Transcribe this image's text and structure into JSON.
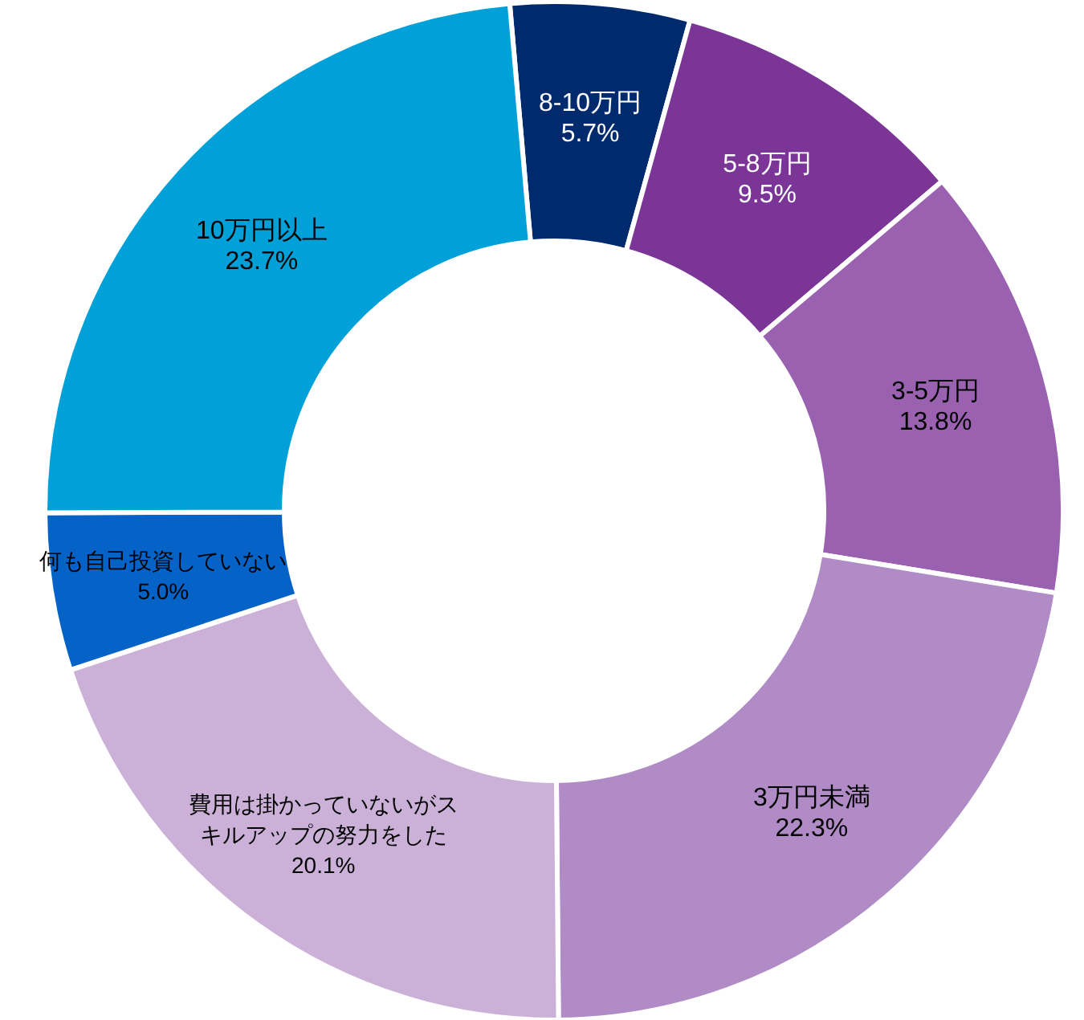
{
  "chart_data": {
    "type": "donut",
    "categories": [
      "8-10万円",
      "5-8万円",
      "3-5万円",
      "3万円未満",
      "費用は掛かっていないがスキルアップの努力をした",
      "何も自己投資していない",
      "10万円以上"
    ],
    "values": [
      5.7,
      9.5,
      13.8,
      22.3,
      20.1,
      5.0,
      23.7
    ],
    "value_labels": [
      "5.7%",
      "9.5%",
      "13.8%",
      "22.3%",
      "20.1%",
      "5.0%",
      "23.7%"
    ],
    "colors": [
      "#002a6e",
      "#7a3597",
      "#9a61b0",
      "#b18bc6",
      "#cbb0d8",
      "#0563c8",
      "#00a0d8"
    ]
  }
}
